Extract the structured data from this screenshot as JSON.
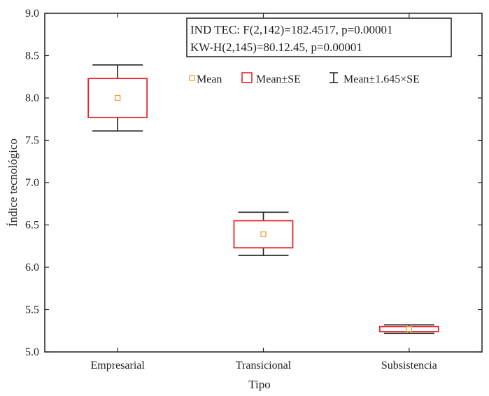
{
  "chart_data": {
    "type": "box",
    "title": "",
    "xlabel": "Tipo",
    "ylabel": "Índice tecnológico",
    "ylim": [
      5.0,
      9.0
    ],
    "yticks": [
      "5.0",
      "5.5",
      "6.0",
      "6.5",
      "7.0",
      "7.5",
      "8.0",
      "8.5",
      "9.0"
    ],
    "ytick_values": [
      5.0,
      5.5,
      6.0,
      6.5,
      7.0,
      7.5,
      8.0,
      8.5,
      9.0
    ],
    "categories": [
      "Empresarial",
      "Transicional",
      "Subsistencia"
    ],
    "series": [
      {
        "category": "Empresarial",
        "mean": 8.0,
        "se_low": 7.77,
        "se_high": 8.23,
        "ci_low": 7.61,
        "ci_high": 8.39
      },
      {
        "category": "Transicional",
        "mean": 6.39,
        "se_low": 6.23,
        "se_high": 6.55,
        "ci_low": 6.14,
        "ci_high": 6.65
      },
      {
        "category": "Subsistencia",
        "mean": 5.27,
        "se_low": 5.24,
        "se_high": 5.3,
        "ci_low": 5.22,
        "ci_high": 5.32
      }
    ],
    "stats": [
      "IND TEC: F(2,142)=182.4517, p=0.00001",
      "KW-H(2,145)=80.12.45, p=0.00001"
    ],
    "legend": {
      "mean": "Mean",
      "se": "Mean±SE",
      "ci": "Mean±1.645×SE"
    },
    "legend_position": "top-right",
    "colors": {
      "mean_marker": "#e8a33b",
      "se_box": "#e8262a",
      "whisker": "#231f20",
      "axis": "#231f20"
    }
  }
}
